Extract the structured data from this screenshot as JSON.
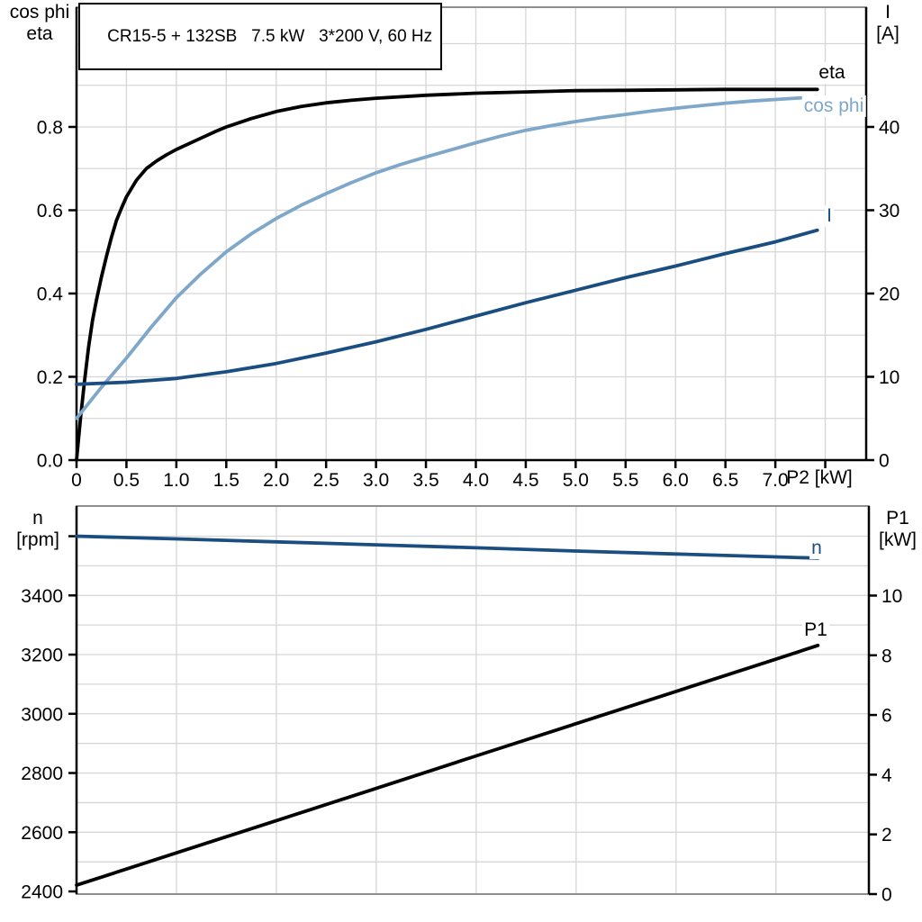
{
  "colors": {
    "eta": "#000000",
    "cos_phi": "#7ea7c9",
    "current": "#1b4e80",
    "n": "#1b4e80",
    "p1": "#000000",
    "grid": "#d6d6d6",
    "axis": "#000000",
    "border_gray": "#8e8e8e"
  },
  "chart_data": [
    {
      "type": "line",
      "title": "CR15-5 + 132SB   7.5 kW   3*200 V, 60 Hz",
      "x_axis": {
        "label": "P2 [kW]",
        "range": [
          0,
          7.91
        ],
        "grid_step": 0.5,
        "ticks": [
          0,
          0.5,
          1,
          1.5,
          2,
          2.5,
          3,
          3.5,
          4,
          4.5,
          5,
          5.5,
          6,
          6.5,
          7,
          7.5
        ],
        "tick_labels": [
          "0",
          "0.5",
          "1.0",
          "1.5",
          "2.0",
          "2.5",
          "3.0",
          "3.5",
          "4.0",
          "4.5",
          "5.0",
          "5.5",
          "6.0",
          "6.5",
          "7.0",
          ""
        ]
      },
      "left_axis": {
        "label1": "cos phi",
        "label2": "eta",
        "range": [
          0,
          1.0875
        ],
        "grid_start": 0.1,
        "grid_step": 0.1,
        "grid_max": 1.0,
        "ticks": [
          0,
          0.2,
          0.4,
          0.6,
          0.8
        ],
        "tick_labels": [
          "0.0",
          "0.2",
          "0.4",
          "0.6",
          "0.8"
        ],
        "extra_ticks": []
      },
      "right_axis": {
        "label1": "I",
        "label2": "[A]",
        "range": [
          0,
          54.375
        ],
        "ticks": [
          0,
          10,
          20,
          30,
          40
        ],
        "tick_labels": [
          "0",
          "10",
          "20",
          "30",
          "40"
        ],
        "extra_ticks": []
      },
      "series": [
        {
          "name": "eta",
          "curve_label": "eta",
          "axis": "left",
          "color_key": "eta",
          "points": [
            [
              0,
              0
            ],
            [
              0.04,
              0.1
            ],
            [
              0.08,
              0.19
            ],
            [
              0.12,
              0.27
            ],
            [
              0.16,
              0.335
            ],
            [
              0.2,
              0.385
            ],
            [
              0.25,
              0.44
            ],
            [
              0.3,
              0.49
            ],
            [
              0.35,
              0.535
            ],
            [
              0.4,
              0.575
            ],
            [
              0.45,
              0.605
            ],
            [
              0.5,
              0.632
            ],
            [
              0.6,
              0.672
            ],
            [
              0.7,
              0.7
            ],
            [
              0.8,
              0.718
            ],
            [
              0.9,
              0.733
            ],
            [
              1.0,
              0.746
            ],
            [
              1.2,
              0.768
            ],
            [
              1.4,
              0.79
            ],
            [
              1.5,
              0.8
            ],
            [
              1.75,
              0.82
            ],
            [
              2.0,
              0.837
            ],
            [
              2.25,
              0.849
            ],
            [
              2.5,
              0.858
            ],
            [
              2.75,
              0.864
            ],
            [
              3.0,
              0.869
            ],
            [
              3.5,
              0.876
            ],
            [
              4.0,
              0.881
            ],
            [
              4.5,
              0.884
            ],
            [
              5.0,
              0.887
            ],
            [
              5.5,
              0.888
            ],
            [
              6.0,
              0.889
            ],
            [
              6.5,
              0.89
            ],
            [
              7.0,
              0.89
            ],
            [
              7.42,
              0.89
            ]
          ]
        },
        {
          "name": "cos phi",
          "curve_label": "cos phi",
          "axis": "left",
          "color_key": "cos_phi",
          "points": [
            [
              0,
              0.1
            ],
            [
              0.25,
              0.175
            ],
            [
              0.5,
              0.245
            ],
            [
              0.75,
              0.32
            ],
            [
              1.0,
              0.39
            ],
            [
              1.25,
              0.448
            ],
            [
              1.5,
              0.5
            ],
            [
              1.75,
              0.543
            ],
            [
              2.0,
              0.58
            ],
            [
              2.25,
              0.612
            ],
            [
              2.5,
              0.64
            ],
            [
              2.75,
              0.666
            ],
            [
              3.0,
              0.69
            ],
            [
              3.25,
              0.71
            ],
            [
              3.5,
              0.728
            ],
            [
              3.75,
              0.745
            ],
            [
              4.0,
              0.762
            ],
            [
              4.25,
              0.778
            ],
            [
              4.5,
              0.792
            ],
            [
              4.75,
              0.803
            ],
            [
              5.0,
              0.813
            ],
            [
              5.25,
              0.822
            ],
            [
              5.5,
              0.83
            ],
            [
              5.75,
              0.838
            ],
            [
              6.0,
              0.845
            ],
            [
              6.25,
              0.851
            ],
            [
              6.5,
              0.857
            ],
            [
              6.75,
              0.862
            ],
            [
              7.0,
              0.866
            ],
            [
              7.2,
              0.869
            ],
            [
              7.42,
              0.872
            ]
          ]
        },
        {
          "name": "I",
          "curve_label": "I",
          "axis": "right",
          "color_key": "current",
          "points": [
            [
              0,
              9.1
            ],
            [
              0.5,
              9.35
            ],
            [
              1.0,
              9.8
            ],
            [
              1.5,
              10.6
            ],
            [
              2.0,
              11.6
            ],
            [
              2.5,
              12.85
            ],
            [
              3.0,
              14.2
            ],
            [
              3.5,
              15.7
            ],
            [
              4.0,
              17.3
            ],
            [
              4.5,
              18.9
            ],
            [
              5.0,
              20.4
            ],
            [
              5.5,
              21.9
            ],
            [
              6.0,
              23.3
            ],
            [
              6.5,
              24.8
            ],
            [
              7.0,
              26.2
            ],
            [
              7.42,
              27.6
            ]
          ]
        }
      ]
    },
    {
      "type": "line",
      "title": "",
      "x_axis": {
        "label": "",
        "range": [
          0,
          7.93
        ],
        "grid_step": 1,
        "ticks": [],
        "tick_labels": []
      },
      "left_axis": {
        "label1": "n",
        "label2": "[rpm]",
        "range": [
          2391,
          3702
        ],
        "grid_start": 2500,
        "grid_step": 100,
        "grid_max": 3600,
        "ticks": [
          2400,
          2600,
          2800,
          3000,
          3200,
          3400
        ],
        "tick_labels": [
          "2400",
          "2600",
          "2800",
          "3000",
          "3200",
          "3400"
        ],
        "extra_ticks": [
          3600
        ]
      },
      "right_axis": {
        "label1": "P1",
        "label2": "[kW]",
        "range": [
          0,
          13.0
        ],
        "ticks": [
          0,
          2,
          4,
          6,
          8,
          10
        ],
        "tick_labels": [
          "0",
          "2",
          "4",
          "6",
          "8",
          "10"
        ],
        "extra_ticks": []
      },
      "series": [
        {
          "name": "n",
          "curve_label": "n",
          "axis": "left",
          "color_key": "n",
          "points": [
            [
              0,
              3600
            ],
            [
              1,
              3591
            ],
            [
              2,
              3581
            ],
            [
              3,
              3571
            ],
            [
              4,
              3561
            ],
            [
              5,
              3550
            ],
            [
              6,
              3540
            ],
            [
              7,
              3530
            ],
            [
              7.42,
              3526
            ]
          ]
        },
        {
          "name": "P1",
          "curve_label": "P1",
          "axis": "right",
          "color_key": "p1",
          "points": [
            [
              0,
              0.3
            ],
            [
              1,
              1.38
            ],
            [
              2,
              2.46
            ],
            [
              3,
              3.54
            ],
            [
              4,
              4.63
            ],
            [
              5,
              5.71
            ],
            [
              6,
              6.79
            ],
            [
              7,
              7.87
            ],
            [
              7.42,
              8.33
            ]
          ]
        }
      ]
    }
  ]
}
